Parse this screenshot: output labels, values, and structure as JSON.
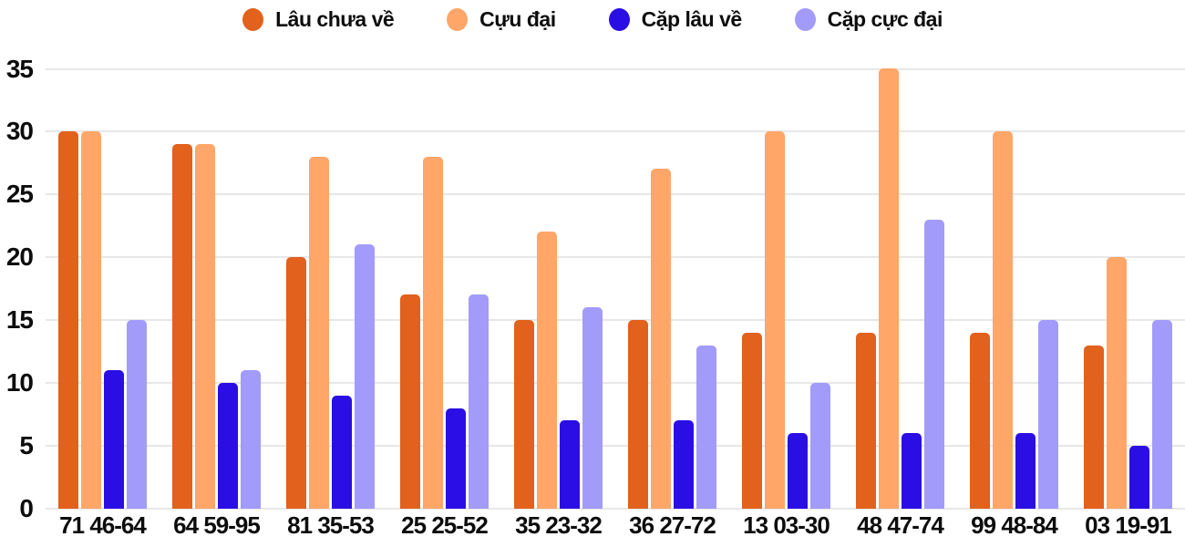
{
  "colors": {
    "background": "#ffffff",
    "grid": "#e7e7e7",
    "text": "#0d0d0d"
  },
  "chart_data": {
    "type": "bar",
    "title": "",
    "xlabel": "",
    "ylabel": "",
    "categories": [
      "71 46-64",
      "64 59-95",
      "81 35-53",
      "25 25-52",
      "35 23-32",
      "36 27-72",
      "13 03-30",
      "48 47-74",
      "99 48-84",
      "03 19-91"
    ],
    "series": [
      {
        "name": "Lâu chưa về",
        "color": "#e2611c",
        "values": [
          30,
          29,
          20,
          17,
          15,
          15,
          14,
          14,
          14,
          13
        ]
      },
      {
        "name": "Cựu đại",
        "color": "#ffa668",
        "values": [
          30,
          29,
          28,
          28,
          22,
          27,
          30,
          35,
          30,
          20
        ]
      },
      {
        "name": "Cặp lâu về",
        "color": "#2b0ee4",
        "values": [
          11,
          10,
          9,
          8,
          7,
          7,
          6,
          6,
          6,
          5
        ]
      },
      {
        "name": "Cặp cực đại",
        "color": "#a29bfa",
        "values": [
          15,
          11,
          21,
          17,
          16,
          13,
          10,
          23,
          15,
          15
        ]
      }
    ],
    "ylim": [
      0,
      35
    ],
    "yticks": [
      0,
      5,
      10,
      15,
      20,
      25,
      30,
      35
    ],
    "grid": true,
    "legend_position": "top"
  }
}
